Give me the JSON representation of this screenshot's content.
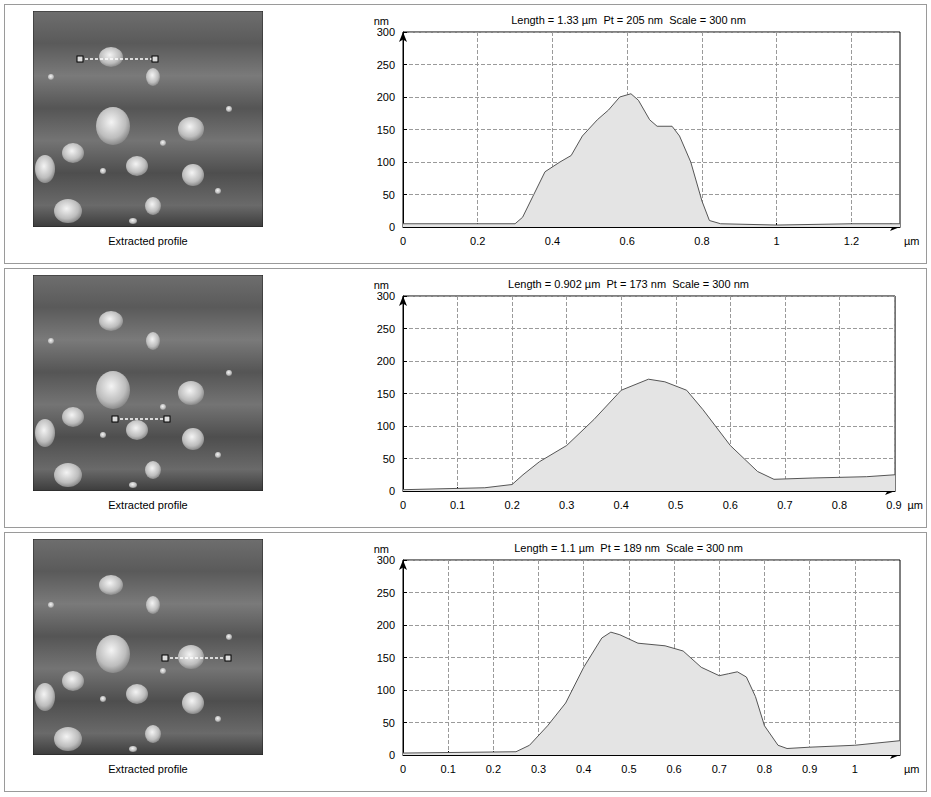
{
  "chart_data": [
    {
      "type": "area",
      "title": "Length = 1.33 µm  Pt = 205 nm  Scale = 300 nm",
      "annotation": "Extracted profile",
      "xlabel": "µm",
      "ylabel": "nm",
      "x": [
        0,
        0.3,
        0.32,
        0.35,
        0.38,
        0.42,
        0.45,
        0.48,
        0.52,
        0.55,
        0.58,
        0.61,
        0.63,
        0.66,
        0.68,
        0.72,
        0.74,
        0.77,
        0.8,
        0.82,
        0.85,
        1.0,
        1.2,
        1.33
      ],
      "values": [
        5,
        5,
        15,
        50,
        85,
        100,
        110,
        140,
        165,
        180,
        200,
        205,
        195,
        165,
        155,
        155,
        140,
        100,
        40,
        10,
        5,
        3,
        5,
        5
      ],
      "color": "#555555",
      "xlim": [
        0,
        1.33
      ],
      "xticks": [
        0,
        0.2,
        0.4,
        0.6,
        0.8,
        1,
        1.2
      ],
      "ylim": [
        0,
        300
      ],
      "yticks": [
        0,
        50,
        100,
        150,
        200,
        250,
        300
      ],
      "grid": true
    },
    {
      "type": "area",
      "title": "Length = 0.902 µm  Pt = 173 nm  Scale = 300 nm",
      "annotation": "Extracted profile",
      "xlabel": "µm",
      "ylabel": "nm",
      "x": [
        0,
        0.15,
        0.2,
        0.22,
        0.25,
        0.3,
        0.35,
        0.4,
        0.45,
        0.48,
        0.52,
        0.55,
        0.6,
        0.65,
        0.68,
        0.75,
        0.85,
        0.902
      ],
      "values": [
        2,
        5,
        10,
        25,
        45,
        70,
        110,
        155,
        172,
        168,
        155,
        125,
        70,
        30,
        18,
        20,
        22,
        25
      ],
      "color": "#555555",
      "xlim": [
        0,
        0.902
      ],
      "xticks": [
        0,
        0.1,
        0.2,
        0.3,
        0.4,
        0.5,
        0.6,
        0.7,
        0.8,
        0.9
      ],
      "ylim": [
        0,
        300
      ],
      "yticks": [
        0,
        50,
        100,
        150,
        200,
        250,
        300
      ],
      "grid": true
    },
    {
      "type": "area",
      "title": "Length = 1.1 µm  Pt = 189 nm  Scale = 300 nm",
      "annotation": "Extracted profile",
      "xlabel": "µm",
      "ylabel": "nm",
      "x": [
        0,
        0.25,
        0.28,
        0.32,
        0.36,
        0.4,
        0.44,
        0.46,
        0.48,
        0.52,
        0.58,
        0.62,
        0.66,
        0.7,
        0.72,
        0.74,
        0.76,
        0.78,
        0.8,
        0.83,
        0.85,
        0.9,
        1.0,
        1.1
      ],
      "values": [
        3,
        5,
        15,
        45,
        80,
        135,
        180,
        189,
        185,
        172,
        168,
        160,
        135,
        122,
        125,
        128,
        120,
        90,
        45,
        15,
        10,
        12,
        15,
        22
      ],
      "color": "#555555",
      "xlim": [
        0,
        1.1
      ],
      "xticks": [
        0,
        0.1,
        0.2,
        0.3,
        0.4,
        0.5,
        0.6,
        0.7,
        0.8,
        0.9,
        1
      ],
      "ylim": [
        0,
        300
      ],
      "yticks": [
        0,
        50,
        100,
        150,
        200,
        250,
        300
      ],
      "grid": true
    }
  ]
}
